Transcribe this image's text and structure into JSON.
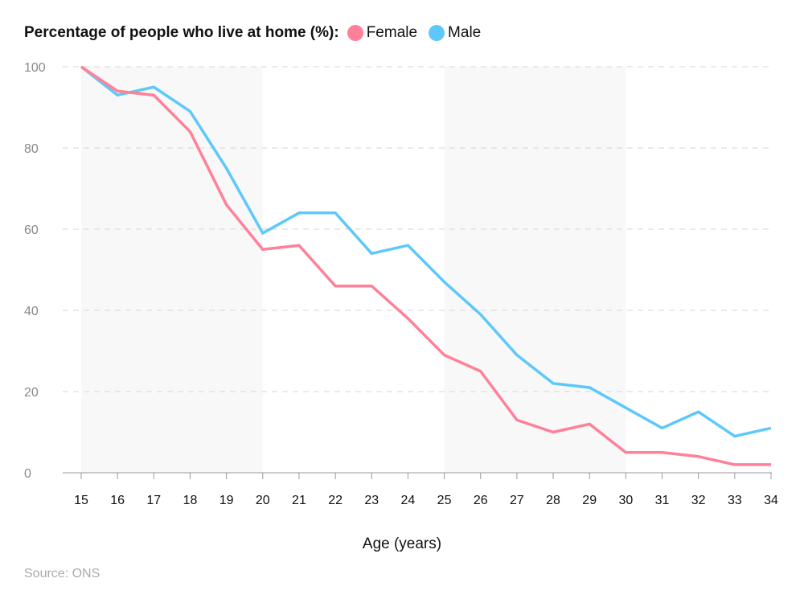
{
  "chart_data": {
    "type": "line",
    "title": "Percentage of people who live at home (%):",
    "xlabel": "Age (years)",
    "ylabel": "",
    "x": [
      15,
      16,
      17,
      18,
      19,
      20,
      21,
      22,
      23,
      24,
      25,
      26,
      27,
      28,
      29,
      30,
      31,
      32,
      33,
      34
    ],
    "ylim": [
      0,
      100
    ],
    "yticks": [
      0,
      20,
      40,
      60,
      80,
      100
    ],
    "grid": true,
    "legend": "top-left",
    "shaded_bands": [
      [
        15,
        20
      ],
      [
        25,
        30
      ]
    ],
    "series": [
      {
        "name": "Female",
        "color": "#ff8099",
        "values": [
          100,
          94,
          93,
          84,
          66,
          55,
          56,
          46,
          46,
          38,
          29,
          25,
          13,
          10,
          12,
          5,
          5,
          4,
          2,
          2
        ]
      },
      {
        "name": "Male",
        "color": "#5ec8fb",
        "values": [
          100,
          93,
          95,
          89,
          75,
          59,
          64,
          64,
          54,
          56,
          47,
          39,
          29,
          22,
          21,
          16,
          11,
          15,
          9,
          11
        ]
      }
    ]
  },
  "source": "Source: ONS"
}
